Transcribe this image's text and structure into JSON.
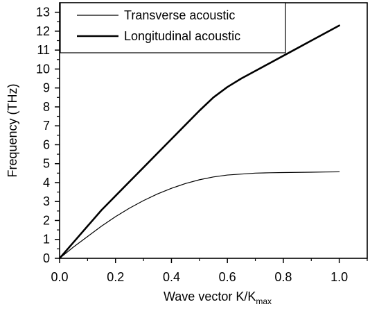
{
  "chart_data": {
    "type": "line",
    "title": "",
    "xlabel": {
      "main": "Wave vector K/K",
      "subscript": "max"
    },
    "ylabel": "Frequency (THz)",
    "xlim": [
      0.0,
      1.1
    ],
    "ylim": [
      0,
      13.5
    ],
    "xticks": [
      "0.0",
      "0.2",
      "0.4",
      "0.6",
      "0.8",
      "1.0"
    ],
    "yticks": [
      "0",
      "1",
      "2",
      "3",
      "4",
      "5",
      "6",
      "7",
      "8",
      "9",
      "10",
      "11",
      "12",
      "13"
    ],
    "grid": false,
    "legend_position": "top-left",
    "series": [
      {
        "name": "Transverse acoustic",
        "line_style": "thin",
        "color": "#000000",
        "x": [
          0.0,
          0.05,
          0.1,
          0.15,
          0.2,
          0.25,
          0.3,
          0.35,
          0.4,
          0.45,
          0.5,
          0.55,
          0.6,
          0.65,
          0.7,
          0.75,
          0.8,
          0.85,
          0.9,
          0.95,
          1.0
        ],
        "y": [
          0.0,
          0.6,
          1.15,
          1.7,
          2.2,
          2.65,
          3.05,
          3.4,
          3.7,
          3.95,
          4.15,
          4.3,
          4.4,
          4.45,
          4.5,
          4.52,
          4.53,
          4.54,
          4.55,
          4.56,
          4.57
        ]
      },
      {
        "name": "Longitudinal acoustic",
        "line_style": "thick",
        "color": "#000000",
        "x": [
          0.0,
          0.05,
          0.1,
          0.15,
          0.2,
          0.25,
          0.3,
          0.35,
          0.4,
          0.45,
          0.5,
          0.55,
          0.6,
          0.65,
          0.7,
          0.75,
          0.8,
          0.85,
          0.9,
          0.95,
          1.0
        ],
        "y": [
          0.0,
          0.85,
          1.7,
          2.55,
          3.3,
          4.05,
          4.8,
          5.55,
          6.3,
          7.05,
          7.8,
          8.5,
          9.05,
          9.5,
          9.9,
          10.3,
          10.7,
          11.1,
          11.5,
          11.9,
          12.3
        ]
      }
    ]
  }
}
